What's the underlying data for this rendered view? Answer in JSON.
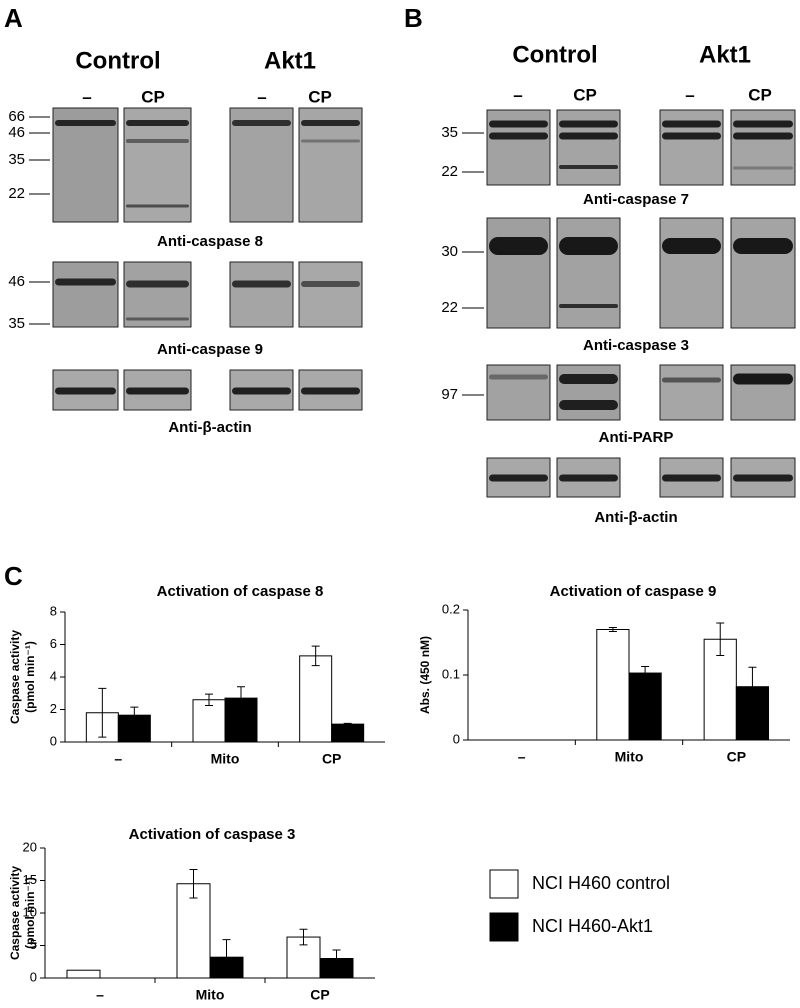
{
  "panel_a": {
    "label": "A",
    "groups": [
      "Control",
      "Akt1"
    ],
    "lanes": [
      "–",
      "CP",
      "–",
      "CP"
    ],
    "blots": [
      {
        "markers": [
          66,
          46,
          35,
          22
        ],
        "antibody": "Anti-caspase 8"
      },
      {
        "markers": [
          46,
          35
        ],
        "antibody": "Anti-caspase 9"
      },
      {
        "antibody": "Anti-β-actin"
      }
    ]
  },
  "panel_b": {
    "label": "B",
    "groups": [
      "Control",
      "Akt1"
    ],
    "lanes": [
      "–",
      "CP",
      "–",
      "CP"
    ],
    "blots": [
      {
        "markers": [
          35,
          22
        ],
        "antibody": "Anti-caspase 7"
      },
      {
        "markers": [
          30,
          22
        ],
        "antibody": "Anti-caspase 3"
      },
      {
        "markers": [
          97
        ],
        "antibody": "Anti-PARP"
      },
      {
        "antibody": "Anti-β-actin"
      }
    ]
  },
  "panel_c": {
    "label": "C"
  },
  "chart_data": [
    {
      "type": "bar",
      "title": "Activation of caspase 8",
      "y_label": [
        "Caspase activity",
        "(pmol min⁻¹)"
      ],
      "categories": [
        "–",
        "Mito",
        "CP"
      ],
      "ylim": [
        0,
        8
      ],
      "yticks": [
        0,
        2,
        4,
        6,
        8
      ],
      "series": [
        {
          "color": "#ffffff",
          "values": [
            1.8,
            2.6,
            5.3
          ],
          "errors": [
            1.5,
            0.35,
            0.6
          ]
        },
        {
          "color": "#000000",
          "values": [
            1.65,
            2.7,
            1.1
          ],
          "errors": [
            0.5,
            0.7,
            0.05
          ]
        }
      ]
    },
    {
      "type": "bar",
      "title": "Activation of caspase 9",
      "y_label": [
        "Abs. (450 nM)"
      ],
      "categories": [
        "–",
        "Mito",
        "CP"
      ],
      "ylim": [
        0,
        0.2
      ],
      "yticks": [
        0,
        0.1,
        0.2
      ],
      "series": [
        {
          "color": "#ffffff",
          "values": [
            null,
            0.17,
            0.155
          ],
          "errors": [
            null,
            0.003,
            0.025
          ]
        },
        {
          "color": "#000000",
          "values": [
            null,
            0.103,
            0.082
          ],
          "errors": [
            null,
            0.01,
            0.03
          ]
        }
      ]
    },
    {
      "type": "bar",
      "title": "Activation of caspase 3",
      "y_label": [
        "Caspase activity",
        "(pmol min⁻¹)"
      ],
      "categories": [
        "–",
        "Mito",
        "CP"
      ],
      "ylim": [
        0,
        20
      ],
      "yticks": [
        0,
        5,
        10,
        15,
        20
      ],
      "series": [
        {
          "name": "NCI H460 control",
          "color": "#ffffff",
          "values": [
            1.2,
            14.5,
            6.3
          ],
          "errors": [
            null,
            2.2,
            1.2
          ]
        },
        {
          "name": "NCI H460-Akt1",
          "color": "#000000",
          "values": [
            0,
            3.2,
            3.0
          ],
          "errors": [
            null,
            2.7,
            1.3
          ]
        }
      ]
    }
  ]
}
